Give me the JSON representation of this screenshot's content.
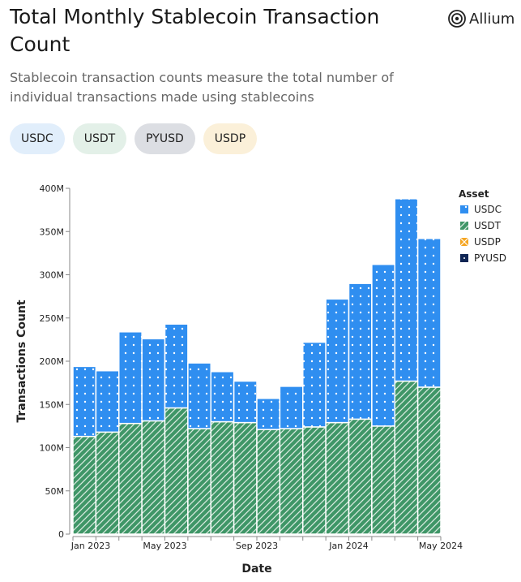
{
  "header": {
    "title": "Total Monthly Stablecoin Transaction Count",
    "subtitle": "Stablecoin transaction counts measure the total number of individual transactions made using stablecoins",
    "logo": "Allium"
  },
  "filters": [
    {
      "label": "USDC",
      "bg": "#e1eefb"
    },
    {
      "label": "USDT",
      "bg": "#e3f0e8"
    },
    {
      "label": "PYUSD",
      "bg": "#dcdee3"
    },
    {
      "label": "USDP",
      "bg": "#fbf0d9"
    }
  ],
  "chart_data": {
    "type": "bar",
    "stacked": true,
    "title": "Total Monthly Stablecoin Transaction Count",
    "xlabel": "Date",
    "ylabel": "Transactions Count",
    "ylim": [
      0,
      400
    ],
    "yticks": [
      "0",
      "50M",
      "100M",
      "150M",
      "200M",
      "250M",
      "300M",
      "350M",
      "400M"
    ],
    "categories": [
      "Jan 2023",
      "Feb 2023",
      "Mar 2023",
      "Apr 2023",
      "May 2023",
      "Jun 2023",
      "Jul 2023",
      "Aug 2023",
      "Sep 2023",
      "Oct 2023",
      "Nov 2023",
      "Dec 2023",
      "Jan 2024",
      "Feb 2024",
      "Mar 2024",
      "Apr 2024"
    ],
    "xtick_labels": {
      "0": "Jan 2023",
      "4": "May 2023",
      "8": "Sep 2023",
      "12": "Jan 2024",
      "16": "May 2024"
    },
    "legend_title": "Asset",
    "legend_position": "right",
    "series": [
      {
        "name": "USDT",
        "color": "#3f9667",
        "values": [
          113,
          118,
          128,
          131,
          146,
          122,
          130,
          129,
          121,
          122,
          124,
          129,
          133,
          125,
          177,
          170
        ]
      },
      {
        "name": "USDC",
        "color": "#2f8ef0",
        "values": [
          81,
          71,
          106,
          95,
          97,
          76,
          58,
          48,
          36,
          49,
          98,
          143,
          157,
          187,
          211,
          172
        ]
      },
      {
        "name": "USDP",
        "color": "#f5a623",
        "values": [
          0,
          0,
          0,
          0,
          0,
          0,
          0,
          0,
          0,
          0,
          0,
          0,
          0,
          0,
          0,
          0
        ]
      },
      {
        "name": "PYUSD",
        "color": "#0f2554",
        "values": [
          0,
          0,
          0,
          0,
          0,
          0,
          0,
          0,
          0,
          0,
          0,
          0,
          0,
          0,
          0,
          0
        ]
      }
    ],
    "legend": [
      "USDC",
      "USDT",
      "USDP",
      "PYUSD"
    ]
  }
}
